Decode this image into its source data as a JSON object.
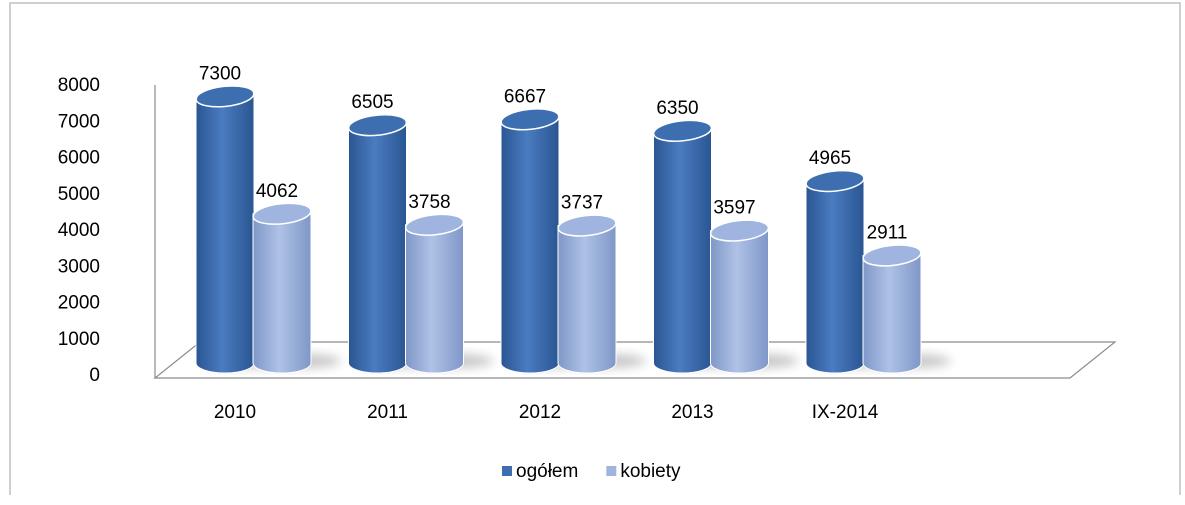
{
  "chart_data": {
    "type": "bar3d",
    "categories": [
      "2010",
      "2011",
      "2012",
      "2013",
      "IX-2014"
    ],
    "series": [
      {
        "name": "ogółem",
        "color": "#3d6eb0",
        "values": [
          7300,
          6505,
          6667,
          6350,
          4965
        ]
      },
      {
        "name": "kobiety",
        "color": "#9fb5df",
        "values": [
          4062,
          3758,
          3737,
          3597,
          2911
        ]
      }
    ],
    "ylim": [
      0,
      8000
    ],
    "yticks": [
      0,
      1000,
      2000,
      3000,
      4000,
      5000,
      6000,
      7000,
      8000
    ],
    "legend": "bottom"
  }
}
